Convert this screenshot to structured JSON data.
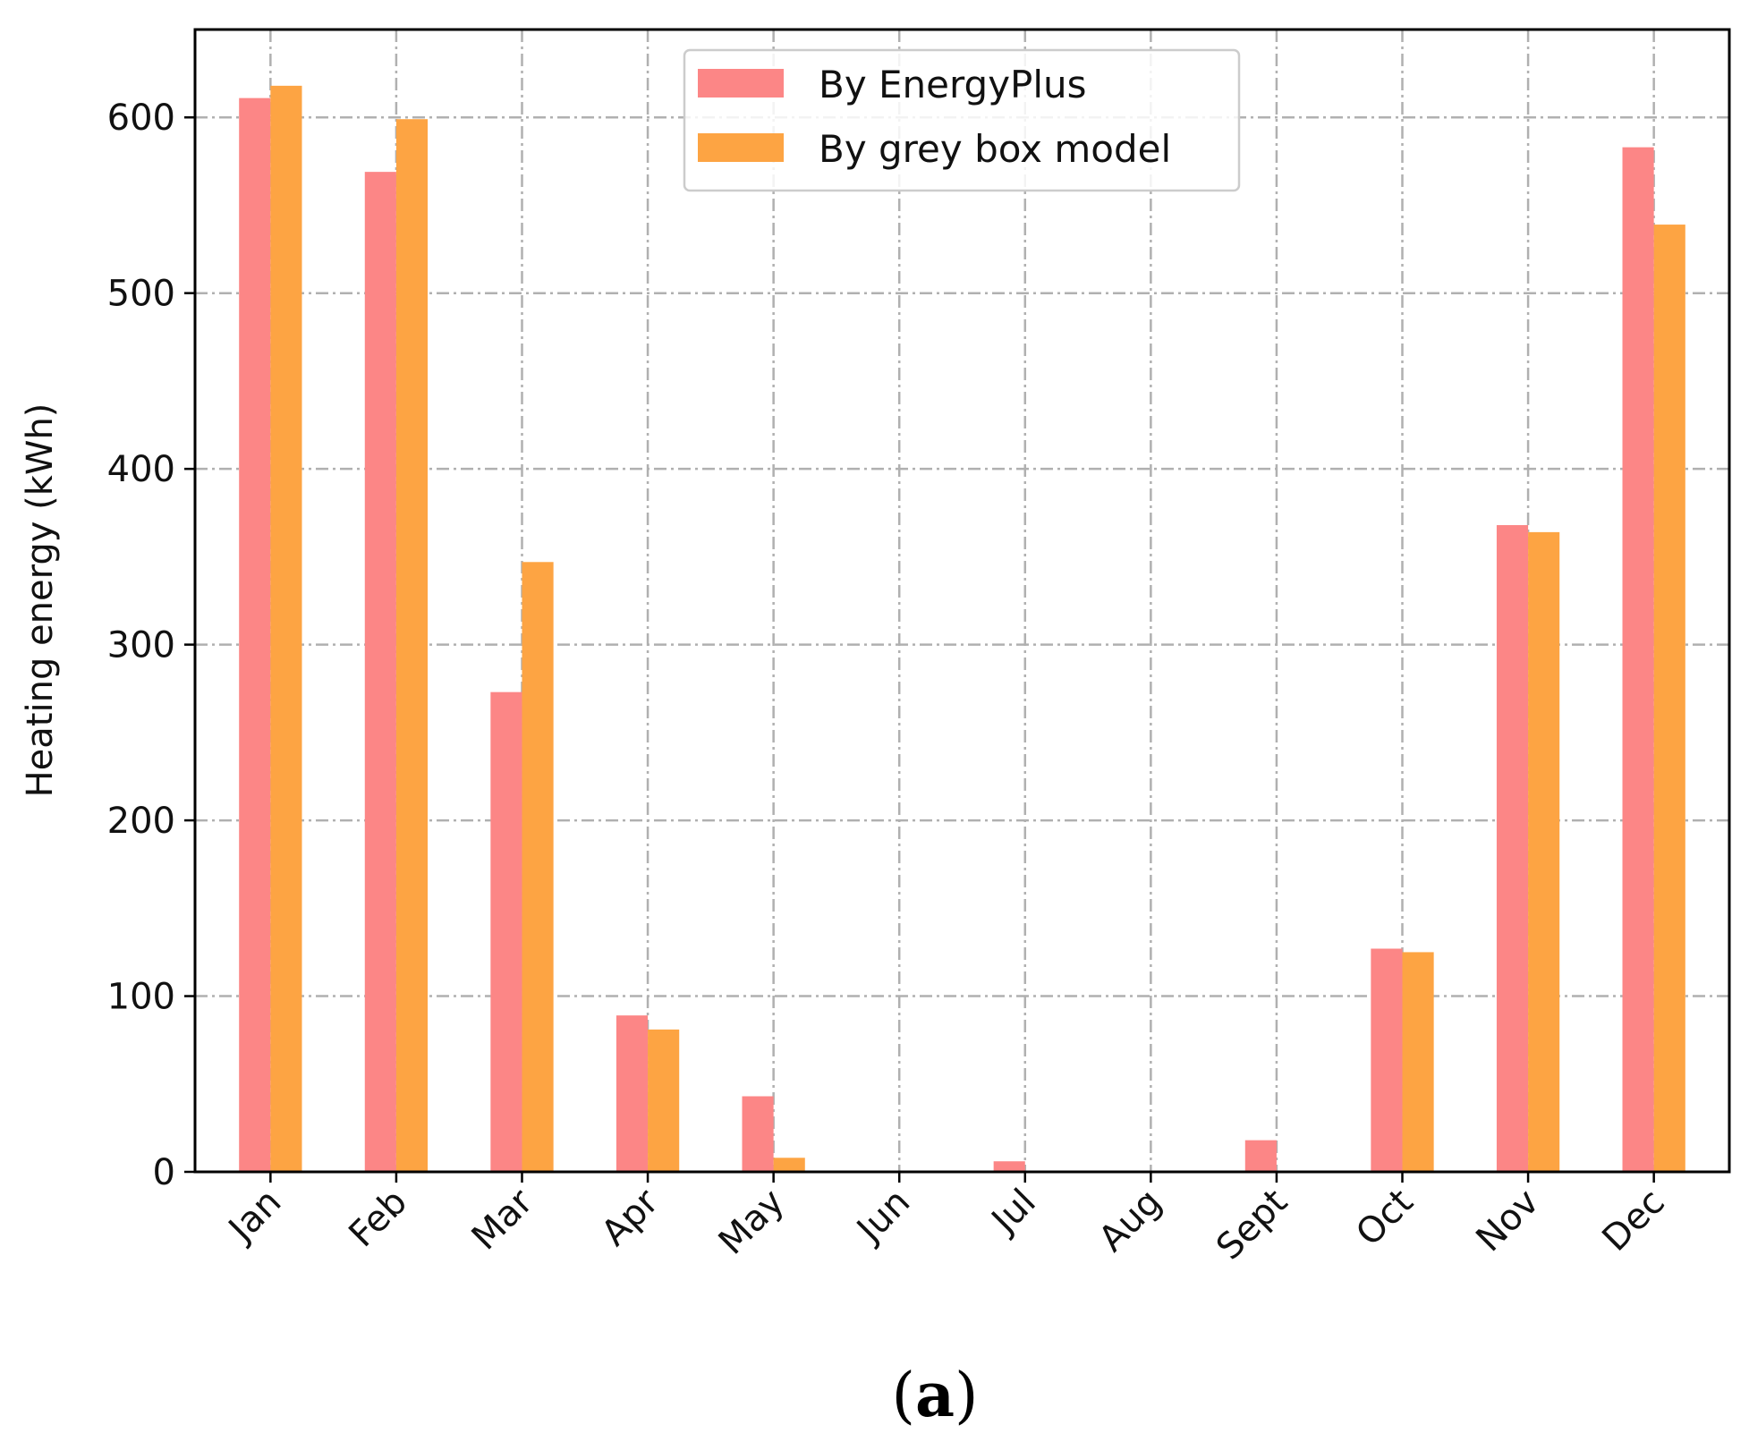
{
  "chart_data": {
    "type": "bar",
    "title": "",
    "xlabel": "",
    "ylabel": "Heating energy (kWh)",
    "ylim": [
      0,
      650
    ],
    "yticks": [
      0,
      100,
      200,
      300,
      400,
      500,
      600
    ],
    "grid": true,
    "legend_position": "top-center",
    "categories": [
      "Jan",
      "Feb",
      "Mar",
      "Apr",
      "May",
      "Jun",
      "Jul",
      "Aug",
      "Sept",
      "Oct",
      "Nov",
      "Dec"
    ],
    "series": [
      {
        "name": "By EnergyPlus",
        "color": "#fc8686",
        "values": [
          611,
          569,
          273,
          89,
          43,
          0,
          6,
          0,
          18,
          127,
          368,
          583
        ]
      },
      {
        "name": "By grey box model",
        "color": "#fda443",
        "values": [
          618,
          599,
          347,
          81,
          8,
          0,
          0,
          0,
          0,
          125,
          364,
          539
        ]
      }
    ],
    "caption_open": "(",
    "caption_label": "a",
    "caption_close": ")"
  }
}
